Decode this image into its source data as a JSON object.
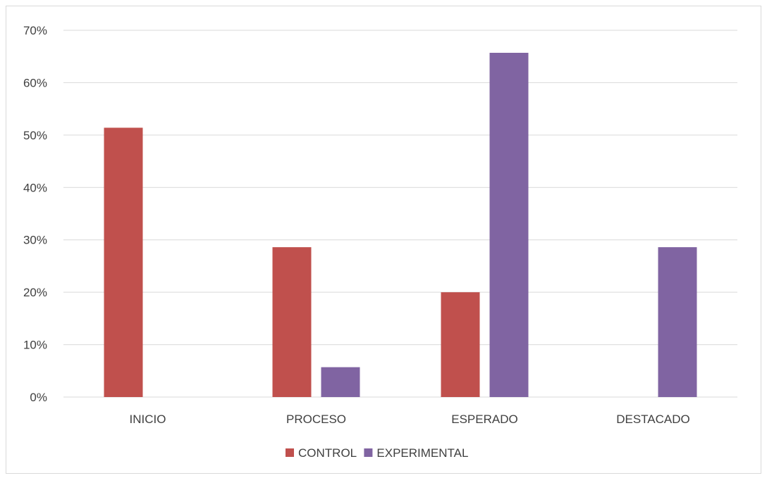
{
  "chart_data": {
    "type": "bar",
    "categories": [
      "INICIO",
      "PROCESO",
      "ESPERADO",
      "DESTACADO"
    ],
    "series": [
      {
        "name": "CONTROL",
        "color": "#c0504d",
        "values": [
          51.4,
          28.6,
          20.0,
          0
        ]
      },
      {
        "name": "EXPERIMENTAL",
        "color": "#8064a2",
        "values": [
          0,
          5.7,
          65.7,
          28.6
        ]
      }
    ],
    "y_ticks": [
      "0%",
      "10%",
      "20%",
      "30%",
      "40%",
      "50%",
      "60%",
      "70%"
    ],
    "ylim": [
      0,
      70
    ],
    "grid": true,
    "legend": "bottom",
    "title": "",
    "xlabel": "",
    "ylabel": ""
  }
}
